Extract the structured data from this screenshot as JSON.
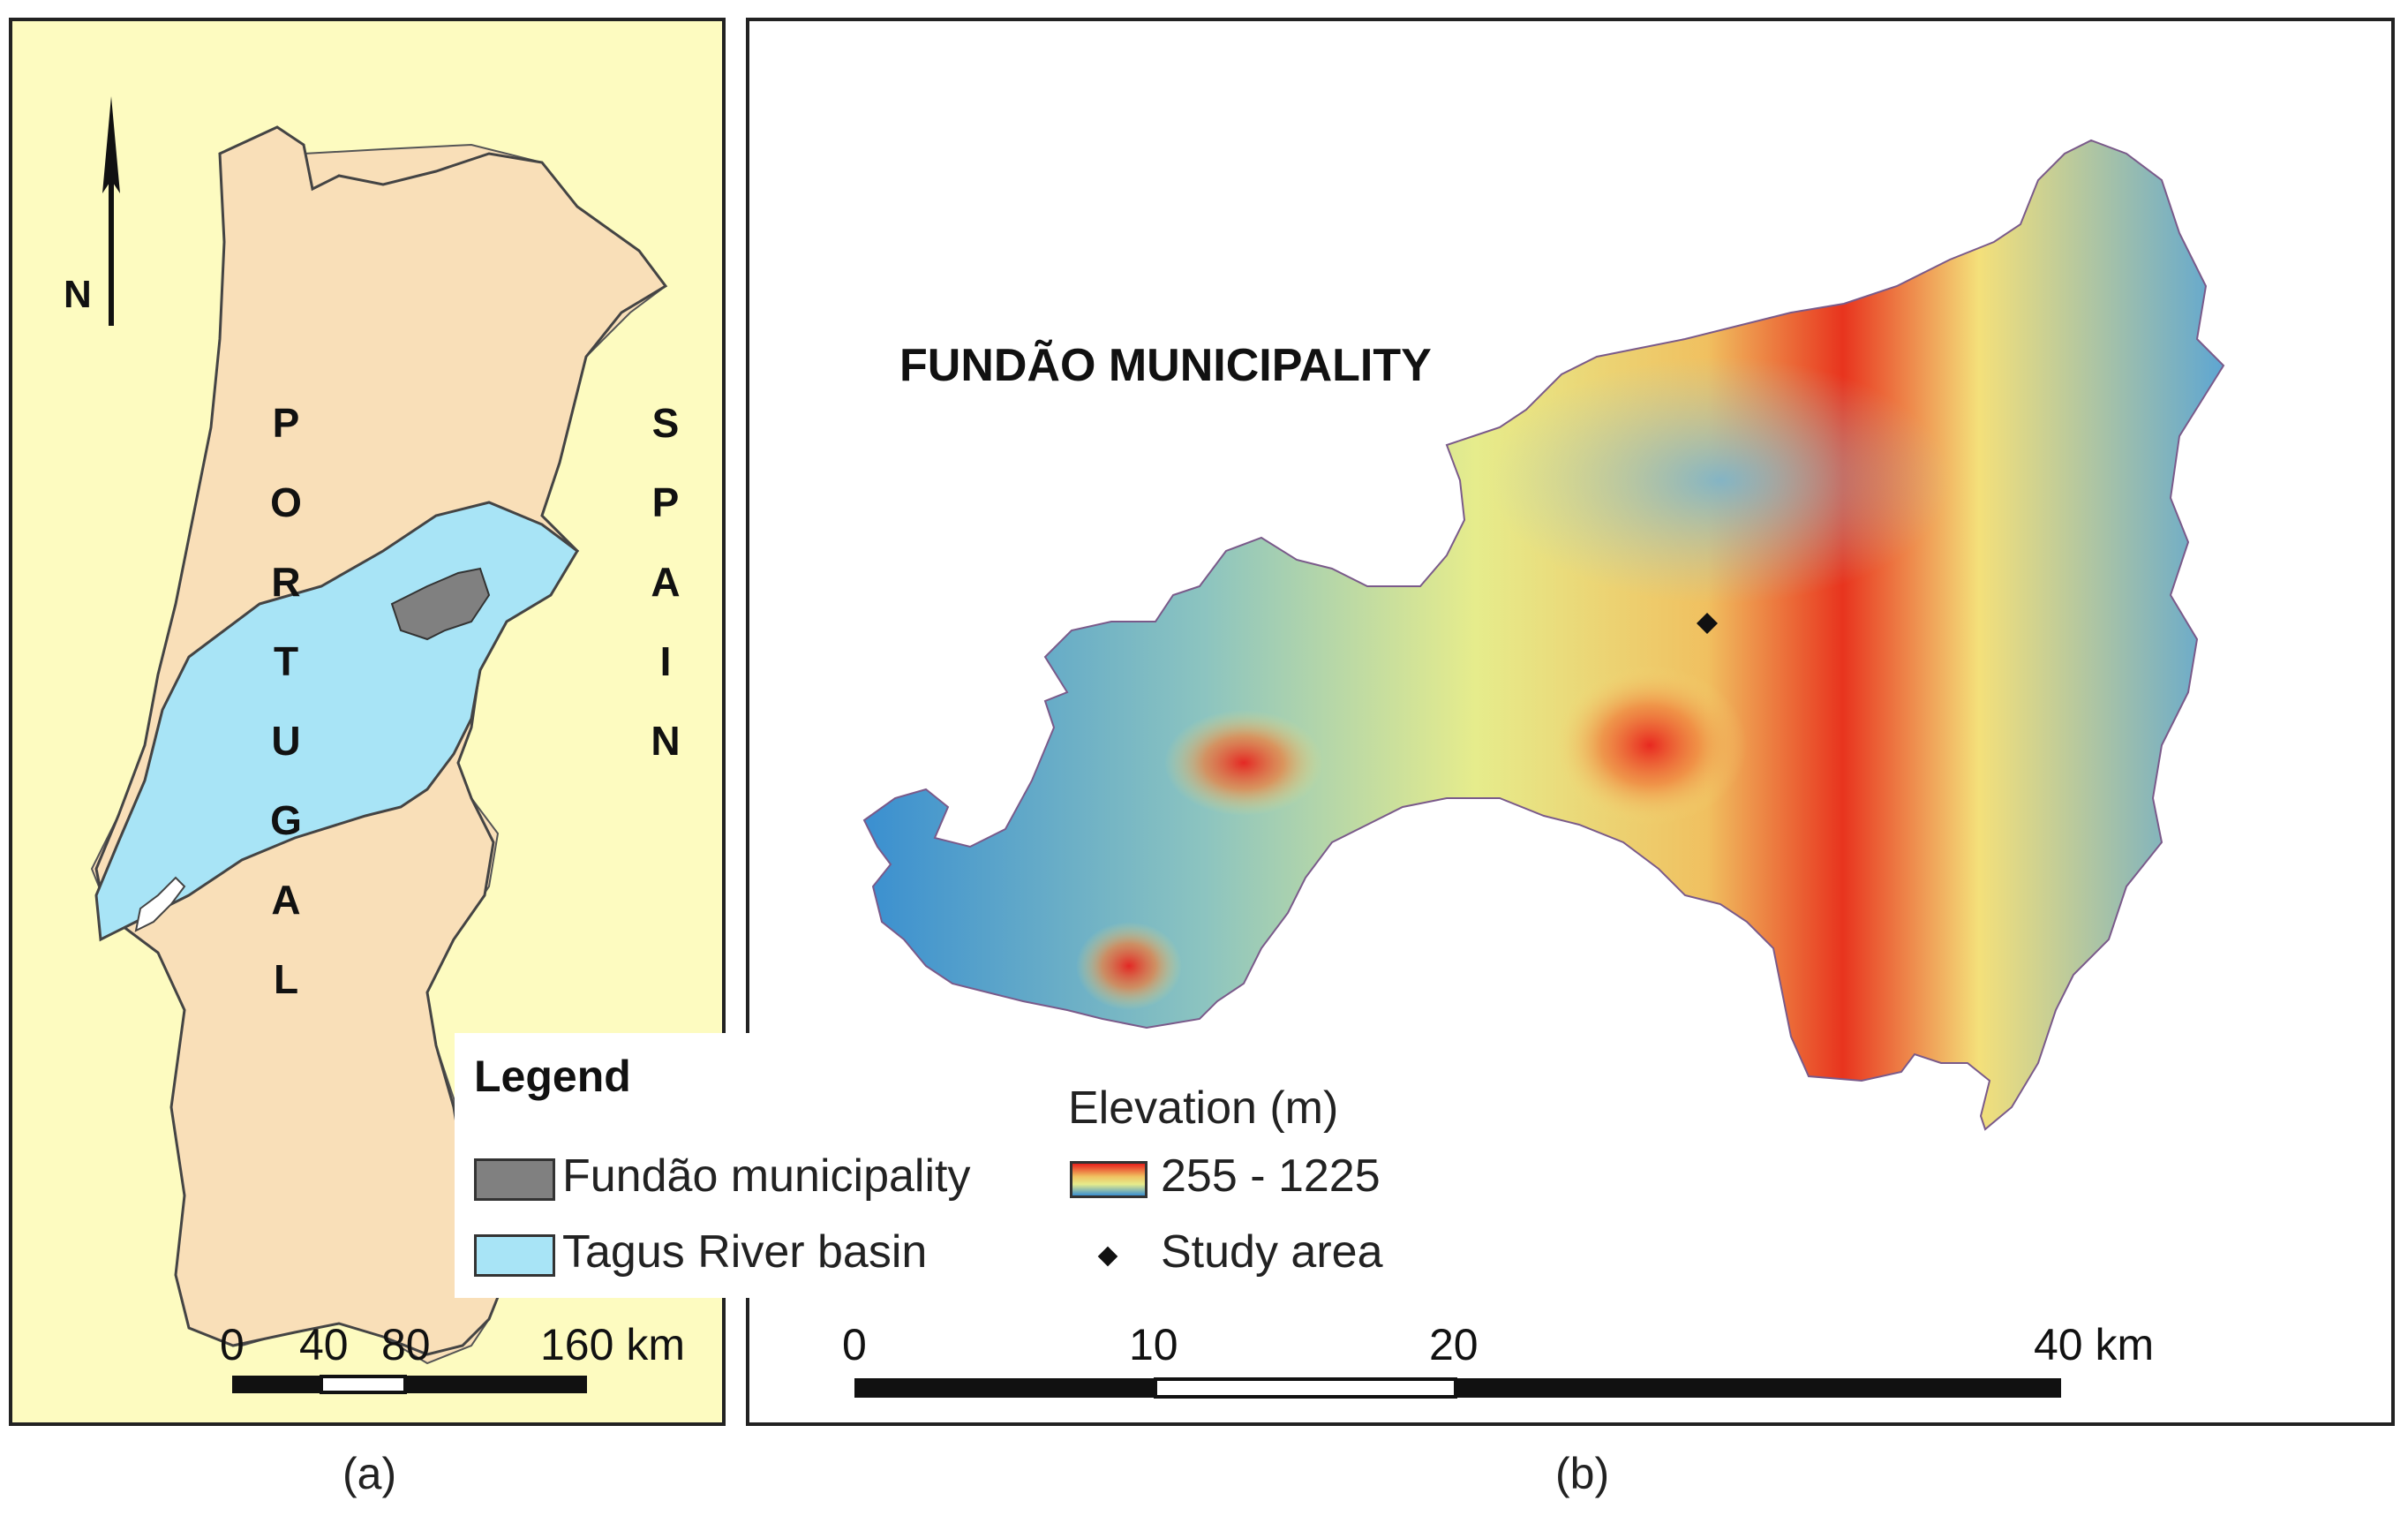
{
  "panel_a": {
    "caption": "(a)",
    "north_label": "N",
    "portugal_letters": [
      "P",
      "O",
      "R",
      "T",
      "U",
      "G",
      "A",
      "L"
    ],
    "spain_letters": [
      "S",
      "P",
      "A",
      "I",
      "N"
    ],
    "scale": {
      "ticks": [
        "0",
        "40",
        "80",
        "160 km"
      ]
    },
    "colors": {
      "sea": "#fdfbc0",
      "land": "#f9dfb8",
      "basin": "#a8e4f6",
      "municipality": "#808080"
    }
  },
  "panel_b": {
    "caption": "(b)",
    "title": "FUNDÃO MUNICIPALITY",
    "scale": {
      "ticks": [
        "0",
        "10",
        "20",
        "40 km"
      ]
    },
    "elevation_colors": {
      "low": "#3a8fd0",
      "mid": "#f0ee8a",
      "high": "#e8201c"
    }
  },
  "legend": {
    "title": "Legend",
    "municipality_label": "Fundão municipality",
    "basin_label": "Tagus River basin",
    "elevation_heading": "Elevation (m)",
    "elevation_range": "255 - 1225",
    "study_area_label": "Study area"
  }
}
